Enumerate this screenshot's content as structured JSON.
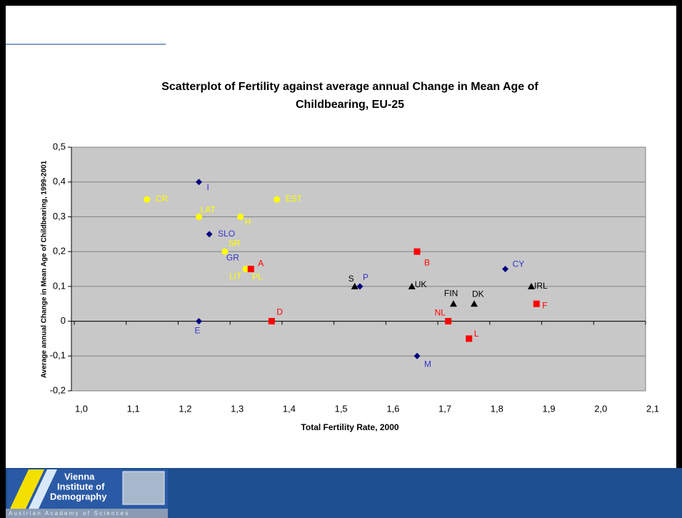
{
  "chart_data": {
    "type": "scatter",
    "title": [
      "Scatterplot of Fertility against average annual Change in Mean Age of",
      "Childbearing, EU-25"
    ],
    "x_label": "Total Fertility Rate, 2000",
    "y_label": "Average annual Change in Mean Age of Childbearing, 1999-2001",
    "xlim": [
      1.0,
      2.1
    ],
    "ylim": [
      -0.2,
      0.5
    ],
    "xticks": [
      {
        "value": 1.0,
        "label": "1,0"
      },
      {
        "value": 1.1,
        "label": "1,1"
      },
      {
        "value": 1.2,
        "label": "1,2"
      },
      {
        "value": 1.3,
        "label": "1,3"
      },
      {
        "value": 1.4,
        "label": "1,4"
      },
      {
        "value": 1.5,
        "label": "1,5"
      },
      {
        "value": 1.6,
        "label": "1,6"
      },
      {
        "value": 1.7,
        "label": "1,7"
      },
      {
        "value": 1.8,
        "label": "1,8"
      },
      {
        "value": 1.9,
        "label": "1,9"
      },
      {
        "value": 2.0,
        "label": "2,0"
      },
      {
        "value": 2.1,
        "label": "2,1"
      }
    ],
    "yticks": [
      {
        "value": -0.2,
        "label": "-0,2"
      },
      {
        "value": -0.1,
        "label": "-0,1"
      },
      0,
      {
        "value": 0.1,
        "label": "0,1"
      },
      {
        "value": 0.2,
        "label": "0,2"
      },
      {
        "value": 0.3,
        "label": "0,3"
      },
      {
        "value": 0.4,
        "label": "0,4"
      },
      {
        "value": 0.5,
        "label": "0,5"
      }
    ],
    "grid": true,
    "series": [
      {
        "color": "#000080",
        "label_color": "#3333cc",
        "marker": "diamond",
        "x": [
          1.24,
          1.26,
          1.29,
          1.24,
          1.55,
          1.83,
          1.66
        ],
        "values": [
          0.4,
          0.25,
          0.2,
          0,
          0.1,
          0.15,
          -0.1
        ],
        "labels": [
          "I",
          "SLO",
          "GR",
          "E",
          "P",
          "CY",
          "M"
        ]
      },
      {
        "color": "#ffff00",
        "label_color": "#ffff00",
        "marker": "circle",
        "x": [
          1.14,
          1.24,
          1.32,
          1.39,
          1.29,
          1.33,
          1.34
        ],
        "values": [
          0.35,
          0.3,
          0.3,
          0.35,
          0.2,
          0.15,
          0.15
        ],
        "labels": [
          "CR",
          "LAT",
          "H",
          "EST",
          "SR",
          "LIT",
          "PL"
        ]
      },
      {
        "color": "#ff0000",
        "label_color": "#ff0000",
        "marker": "square",
        "x": [
          1.34,
          1.66,
          1.38,
          1.72,
          1.76,
          1.89
        ],
        "values": [
          0.15,
          0.2,
          0,
          0,
          -0.05,
          0.05
        ],
        "labels": [
          "A",
          "B",
          "D",
          "NL",
          "L",
          "F"
        ]
      },
      {
        "color": "#000000",
        "label_color": "#000000",
        "marker": "triangle",
        "x": [
          1.54,
          1.65,
          1.73,
          1.77,
          1.88
        ],
        "values": [
          0.1,
          0.1,
          0.05,
          0.05,
          0.1
        ],
        "labels": [
          "S",
          "UK",
          "FIN",
          "DK",
          "IRL"
        ]
      }
    ]
  },
  "footer": {
    "logo_lines": [
      "Vienna",
      "Institute of",
      "Demography"
    ],
    "academy": "Austrian Academy of Sciences"
  }
}
